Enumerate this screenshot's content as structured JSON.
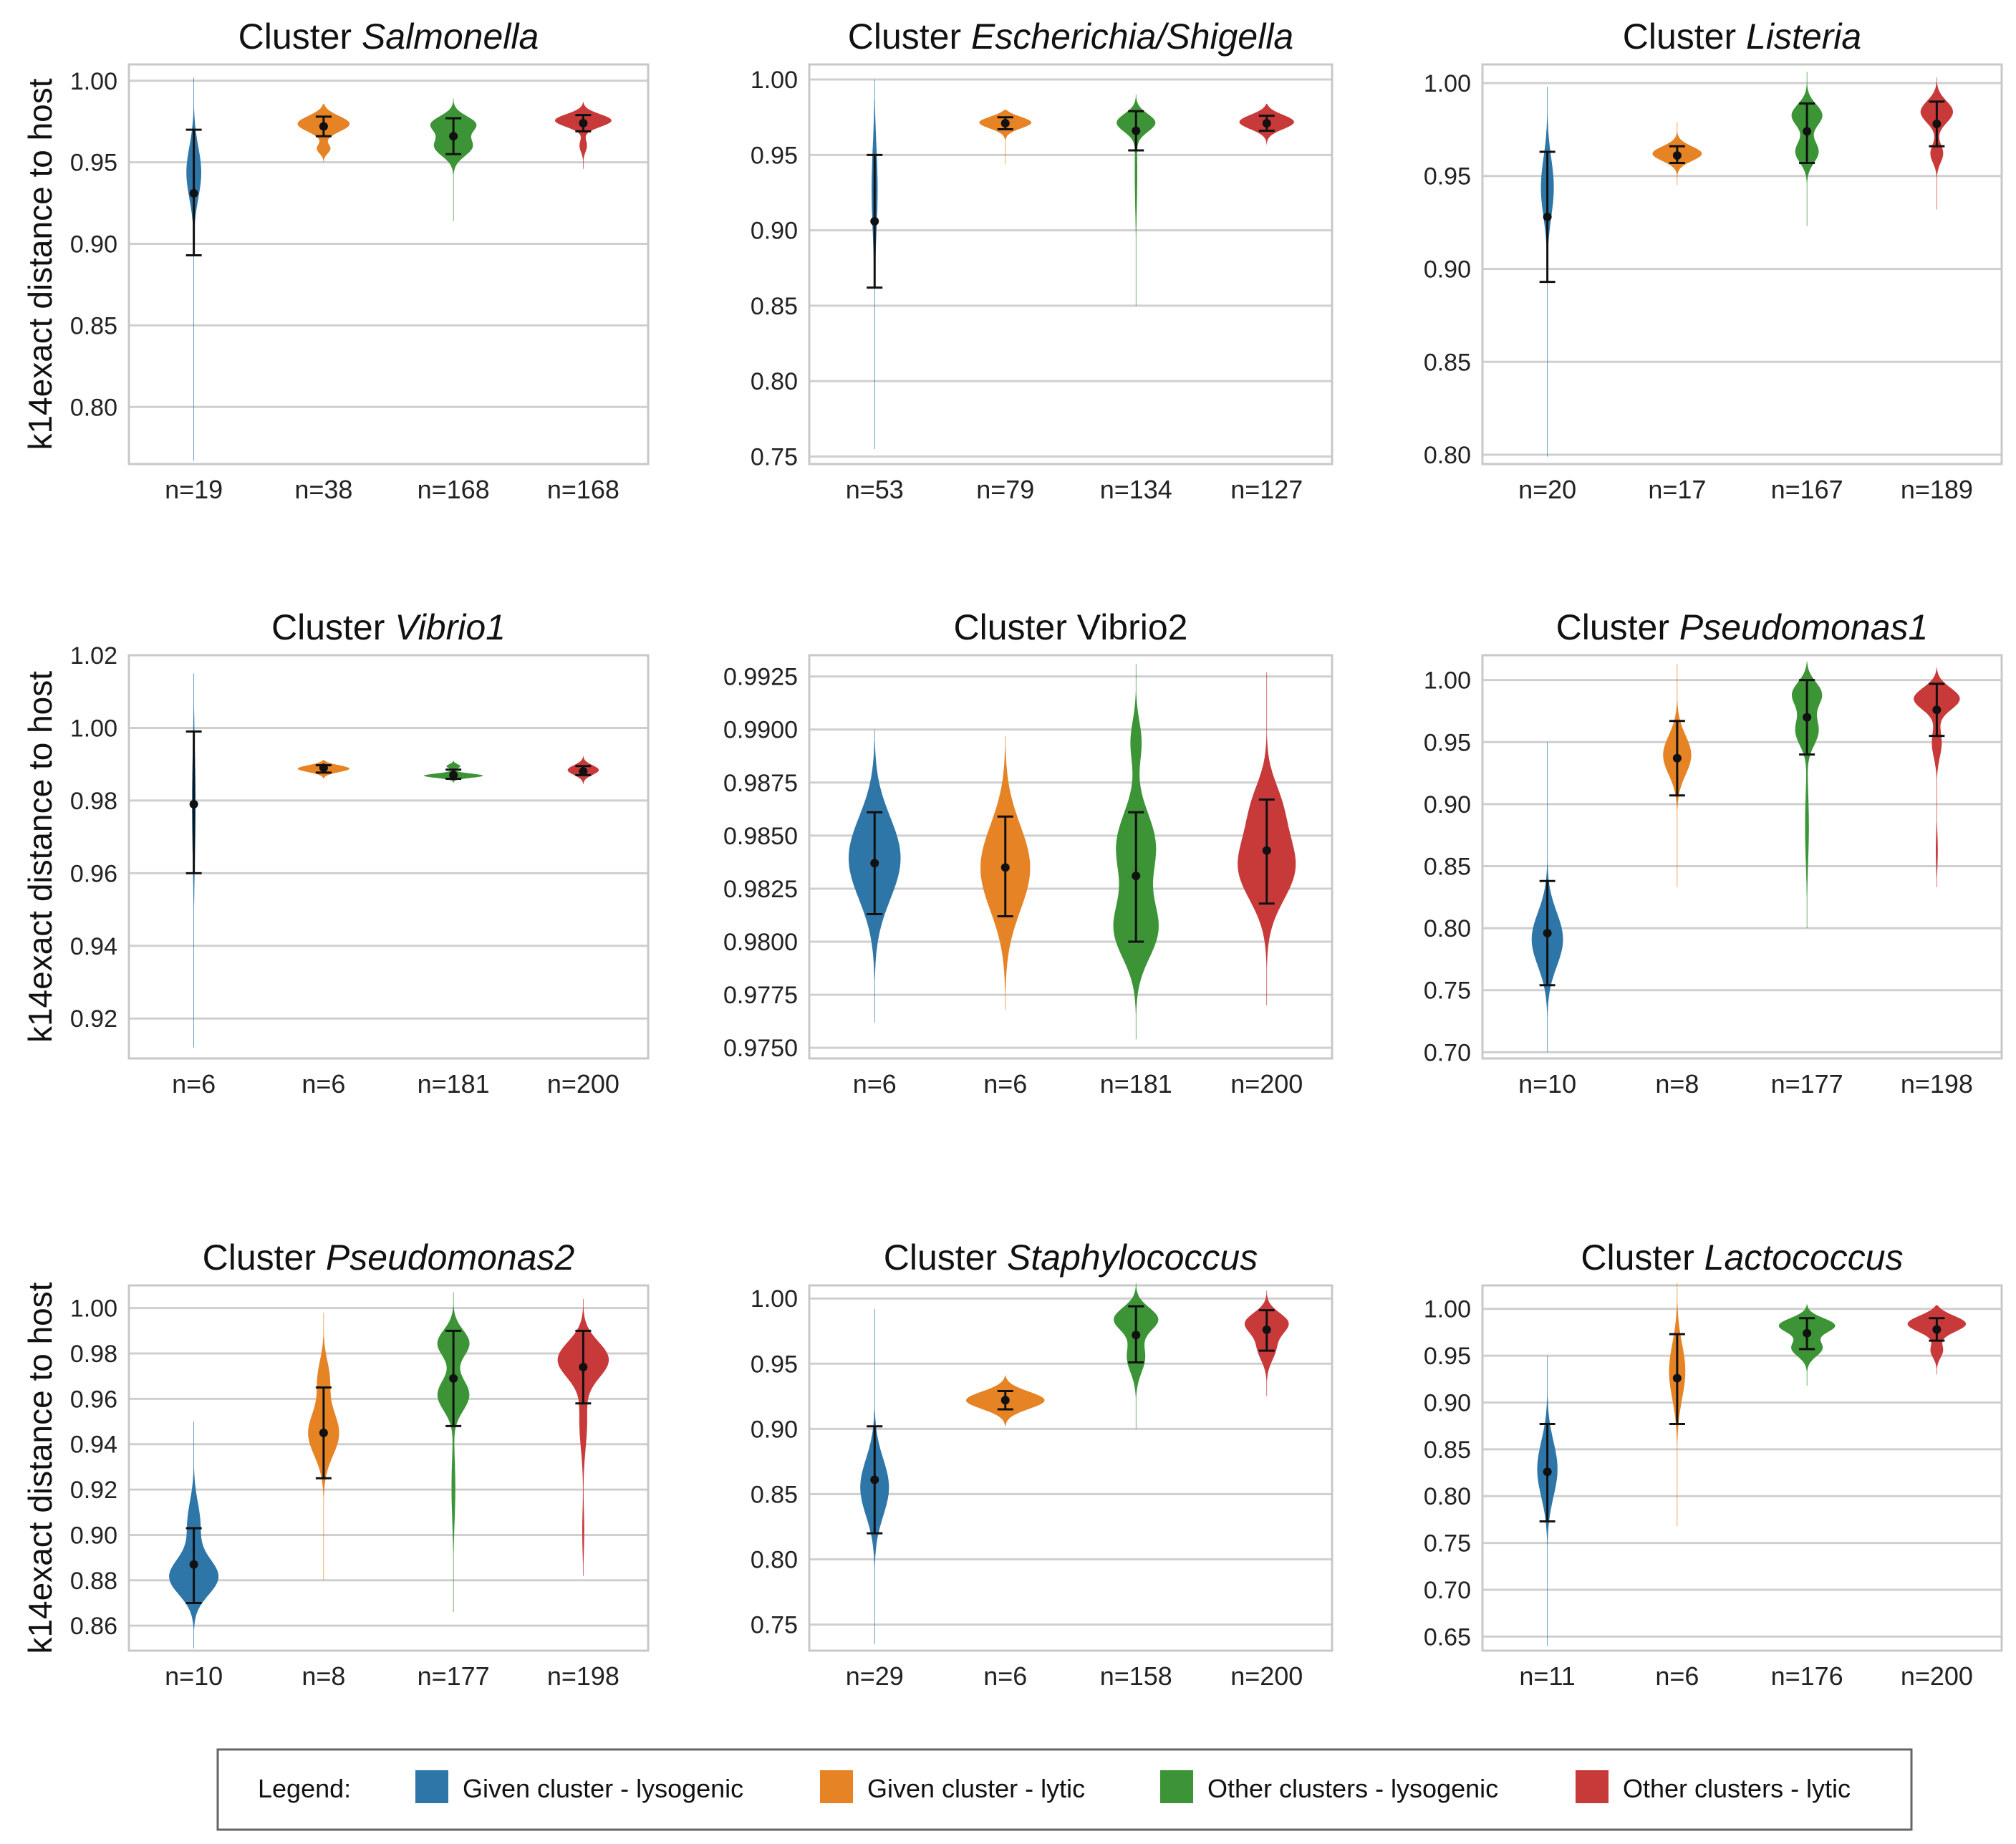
{
  "ylabel": "k14exact distance to host",
  "colors": [
    "#2e76a8",
    "#e58325",
    "#3c9437",
    "#c83a3a"
  ],
  "legend": {
    "label": "Legend:",
    "items": [
      {
        "label": "Given cluster - lysogenic",
        "color": "#2e76a8"
      },
      {
        "label": "Given cluster - lytic",
        "color": "#e58325"
      },
      {
        "label": "Other clusters - lysogenic",
        "color": "#3c9437"
      },
      {
        "label": "Other clusters - lytic",
        "color": "#c83a3a"
      }
    ]
  },
  "chart_data": [
    {
      "type": "violin",
      "title_prefix": "Cluster ",
      "title_name": "Salmonella",
      "italic": true,
      "ylim": [
        0.765,
        1.01
      ],
      "yticks": [
        0.8,
        0.85,
        0.9,
        0.95,
        1.0
      ],
      "tick_decimals": 2,
      "categories": [
        "n=19",
        "n=38",
        "n=168",
        "n=168"
      ],
      "violins": [
        {
          "mean": 0.931,
          "lo": 0.893,
          "hi": 0.97,
          "min": 0.767,
          "max": 1.002,
          "peaks": [
            [
              0.945,
              0.016,
              0.13
            ]
          ]
        },
        {
          "mean": 0.972,
          "lo": 0.966,
          "hi": 0.978,
          "min": 0.95,
          "max": 0.986,
          "peaks": [
            [
              0.974,
              0.005,
              0.42
            ],
            [
              0.958,
              0.003,
              0.12
            ]
          ]
        },
        {
          "mean": 0.966,
          "lo": 0.955,
          "hi": 0.977,
          "min": 0.914,
          "max": 0.989,
          "peaks": [
            [
              0.974,
              0.005,
              0.4
            ],
            [
              0.96,
              0.006,
              0.3
            ]
          ]
        },
        {
          "mean": 0.974,
          "lo": 0.969,
          "hi": 0.979,
          "min": 0.946,
          "max": 0.987,
          "peaks": [
            [
              0.976,
              0.004,
              0.48
            ],
            [
              0.96,
              0.004,
              0.06
            ]
          ]
        }
      ]
    },
    {
      "type": "violin",
      "title_prefix": "Cluster ",
      "title_name": "Escherichia/Shigella",
      "italic": true,
      "ylim": [
        0.745,
        1.01
      ],
      "yticks": [
        0.75,
        0.8,
        0.85,
        0.9,
        0.95,
        1.0
      ],
      "tick_decimals": 2,
      "categories": [
        "n=53",
        "n=79",
        "n=134",
        "n=127"
      ],
      "violins": [
        {
          "mean": 0.906,
          "lo": 0.862,
          "hi": 0.95,
          "min": 0.755,
          "max": 1.0,
          "peaks": [
            [
              0.93,
              0.03,
              0.05
            ]
          ]
        },
        {
          "mean": 0.971,
          "lo": 0.967,
          "hi": 0.975,
          "min": 0.944,
          "max": 0.98,
          "peaks": [
            [
              0.972,
              0.004,
              0.46
            ]
          ]
        },
        {
          "mean": 0.966,
          "lo": 0.953,
          "hi": 0.979,
          "min": 0.85,
          "max": 0.99,
          "peaks": [
            [
              0.972,
              0.006,
              0.4
            ],
            [
              0.94,
              0.025,
              0.02
            ]
          ]
        },
        {
          "mean": 0.971,
          "lo": 0.966,
          "hi": 0.976,
          "min": 0.957,
          "max": 0.984,
          "peaks": [
            [
              0.972,
              0.005,
              0.42
            ]
          ]
        }
      ]
    },
    {
      "type": "violin",
      "title_prefix": "Cluster ",
      "title_name": "Listeria",
      "italic": true,
      "ylim": [
        0.795,
        1.01
      ],
      "yticks": [
        0.8,
        0.85,
        0.9,
        0.95,
        1.0
      ],
      "tick_decimals": 2,
      "categories": [
        "n=20",
        "n=17",
        "n=167",
        "n=189"
      ],
      "violins": [
        {
          "mean": 0.928,
          "lo": 0.893,
          "hi": 0.963,
          "min": 0.799,
          "max": 0.998,
          "peaks": [
            [
              0.945,
              0.016,
              0.11
            ]
          ]
        },
        {
          "mean": 0.961,
          "lo": 0.957,
          "hi": 0.966,
          "min": 0.945,
          "max": 0.979,
          "peaks": [
            [
              0.962,
              0.004,
              0.38
            ]
          ]
        },
        {
          "mean": 0.974,
          "lo": 0.957,
          "hi": 0.989,
          "min": 0.923,
          "max": 1.006,
          "peaks": [
            [
              0.983,
              0.006,
              0.26
            ],
            [
              0.963,
              0.006,
              0.18
            ]
          ]
        },
        {
          "mean": 0.978,
          "lo": 0.966,
          "hi": 0.99,
          "min": 0.932,
          "max": 1.003,
          "peaks": [
            [
              0.985,
              0.006,
              0.28
            ],
            [
              0.962,
              0.005,
              0.1
            ]
          ]
        }
      ]
    },
    {
      "type": "violin",
      "title_prefix": "Cluster ",
      "title_name": "Vibrio1",
      "italic": true,
      "ylim": [
        0.909,
        1.02
      ],
      "yticks": [
        0.92,
        0.94,
        0.96,
        0.98,
        1.0,
        1.02
      ],
      "tick_decimals": 2,
      "categories": [
        "n=6",
        "n=6",
        "n=181",
        "n=200"
      ],
      "violins": [
        {
          "mean": 0.979,
          "lo": 0.96,
          "hi": 0.999,
          "min": 0.912,
          "max": 1.015,
          "peaks": [
            [
              0.98,
              0.015,
              0.03
            ]
          ]
        },
        {
          "mean": 0.989,
          "lo": 0.9877,
          "hi": 0.9897,
          "min": 0.986,
          "max": 0.9912,
          "peaks": [
            [
              0.9888,
              0.001,
              0.4
            ]
          ]
        },
        {
          "mean": 0.987,
          "lo": 0.986,
          "hi": 0.9885,
          "min": 0.9848,
          "max": 0.991,
          "peaks": [
            [
              0.9868,
              0.0006,
              0.48
            ],
            [
              0.9895,
              0.0006,
              0.12
            ]
          ]
        },
        {
          "mean": 0.988,
          "lo": 0.987,
          "hi": 0.9895,
          "min": 0.9845,
          "max": 0.9922,
          "peaks": [
            [
              0.9884,
              0.0014,
              0.24
            ]
          ]
        }
      ]
    },
    {
      "type": "violin",
      "title_prefix": "Cluster ",
      "title_name": "Vibrio2",
      "italic": false,
      "ylim": [
        0.9745,
        0.9935
      ],
      "yticks": [
        0.975,
        0.9775,
        0.98,
        0.9825,
        0.985,
        0.9875,
        0.99,
        0.9925
      ],
      "tick_decimals": 4,
      "categories": [
        "n=6",
        "n=6",
        "n=181",
        "n=200"
      ],
      "violins": [
        {
          "mean": 0.9837,
          "lo": 0.9813,
          "hi": 0.9861,
          "min": 0.9762,
          "max": 0.99,
          "peaks": [
            [
              0.984,
              0.002,
              0.4
            ]
          ]
        },
        {
          "mean": 0.9835,
          "lo": 0.9812,
          "hi": 0.9859,
          "min": 0.9768,
          "max": 0.9897,
          "peaks": [
            [
              0.9835,
              0.0021,
              0.38
            ]
          ]
        },
        {
          "mean": 0.9831,
          "lo": 0.98,
          "hi": 0.9861,
          "min": 0.9754,
          "max": 0.9931,
          "peaks": [
            [
              0.9805,
              0.0014,
              0.36
            ],
            [
              0.9845,
              0.0016,
              0.3
            ],
            [
              0.9895,
              0.001,
              0.1
            ]
          ]
        },
        {
          "mean": 0.9843,
          "lo": 0.9818,
          "hi": 0.9867,
          "min": 0.977,
          "max": 0.9927,
          "peaks": [
            [
              0.9835,
              0.0016,
              0.44
            ],
            [
              0.9865,
              0.0012,
              0.18
            ]
          ]
        }
      ]
    },
    {
      "type": "violin",
      "title_prefix": "Cluster ",
      "title_name": "Pseudomonas1",
      "italic": true,
      "ylim": [
        0.695,
        1.02
      ],
      "yticks": [
        0.7,
        0.75,
        0.8,
        0.85,
        0.9,
        0.95,
        1.0
      ],
      "tick_decimals": 2,
      "categories": [
        "n=10",
        "n=8",
        "n=177",
        "n=198"
      ],
      "violins": [
        {
          "mean": 0.796,
          "lo": 0.754,
          "hi": 0.838,
          "min": 0.7,
          "max": 0.95,
          "peaks": [
            [
              0.79,
              0.022,
              0.25
            ]
          ]
        },
        {
          "mean": 0.937,
          "lo": 0.907,
          "hi": 0.967,
          "min": 0.833,
          "max": 1.013,
          "peaks": [
            [
              0.94,
              0.016,
              0.22
            ]
          ]
        },
        {
          "mean": 0.97,
          "lo": 0.94,
          "hi": 1.0,
          "min": 0.8,
          "max": 1.015,
          "peaks": [
            [
              0.99,
              0.01,
              0.32
            ],
            [
              0.96,
              0.012,
              0.2
            ],
            [
              0.88,
              0.03,
              0.03
            ]
          ]
        },
        {
          "mean": 0.976,
          "lo": 0.955,
          "hi": 0.997,
          "min": 0.833,
          "max": 1.01,
          "peaks": [
            [
              0.986,
              0.009,
              0.48
            ],
            [
              0.95,
              0.012,
              0.08
            ],
            [
              0.86,
              0.015,
              0.02
            ]
          ]
        }
      ]
    },
    {
      "type": "violin",
      "title_prefix": "Cluster ",
      "title_name": "Pseudomonas2",
      "italic": true,
      "ylim": [
        0.849,
        1.01
      ],
      "yticks": [
        0.86,
        0.88,
        0.9,
        0.92,
        0.94,
        0.96,
        0.98,
        1.0
      ],
      "tick_decimals": 2,
      "categories": [
        "n=10",
        "n=8",
        "n=177",
        "n=198"
      ],
      "violins": [
        {
          "mean": 0.887,
          "lo": 0.87,
          "hi": 0.903,
          "min": 0.85,
          "max": 0.95,
          "peaks": [
            [
              0.881,
              0.008,
              0.4
            ],
            [
              0.905,
              0.01,
              0.1
            ]
          ]
        },
        {
          "mean": 0.945,
          "lo": 0.925,
          "hi": 0.965,
          "min": 0.88,
          "max": 0.998,
          "peaks": [
            [
              0.945,
              0.01,
              0.24
            ],
            [
              0.97,
              0.008,
              0.1
            ]
          ]
        },
        {
          "mean": 0.969,
          "lo": 0.948,
          "hi": 0.99,
          "min": 0.866,
          "max": 1.007,
          "peaks": [
            [
              0.985,
              0.006,
              0.32
            ],
            [
              0.962,
              0.007,
              0.26
            ],
            [
              0.92,
              0.015,
              0.03
            ]
          ]
        },
        {
          "mean": 0.974,
          "lo": 0.958,
          "hi": 0.99,
          "min": 0.882,
          "max": 1.004,
          "peaks": [
            [
              0.978,
              0.008,
              0.46
            ],
            [
              0.95,
              0.012,
              0.06
            ],
            [
              0.9,
              0.01,
              0.02
            ]
          ]
        }
      ]
    },
    {
      "type": "violin",
      "title_prefix": "Cluster ",
      "title_name": "Staphylococcus",
      "italic": true,
      "ylim": [
        0.73,
        1.01
      ],
      "yticks": [
        0.75,
        0.8,
        0.85,
        0.9,
        0.95,
        1.0
      ],
      "tick_decimals": 2,
      "categories": [
        "n=29",
        "n=6",
        "n=158",
        "n=200"
      ],
      "violins": [
        {
          "mean": 0.861,
          "lo": 0.82,
          "hi": 0.902,
          "min": 0.735,
          "max": 0.992,
          "peaks": [
            [
              0.855,
              0.022,
              0.22
            ]
          ]
        },
        {
          "mean": 0.922,
          "lo": 0.915,
          "hi": 0.929,
          "min": 0.902,
          "max": 0.941,
          "peaks": [
            [
              0.922,
              0.007,
              0.6
            ]
          ]
        },
        {
          "mean": 0.972,
          "lo": 0.951,
          "hi": 0.994,
          "min": 0.9,
          "max": 1.012,
          "peaks": [
            [
              0.985,
              0.009,
              0.38
            ],
            [
              0.955,
              0.012,
              0.14
            ]
          ]
        },
        {
          "mean": 0.976,
          "lo": 0.96,
          "hi": 0.991,
          "min": 0.925,
          "max": 1.006,
          "peaks": [
            [
              0.982,
              0.008,
              0.34
            ],
            [
              0.962,
              0.01,
              0.14
            ]
          ]
        }
      ]
    },
    {
      "type": "violin",
      "title_prefix": "Cluster ",
      "title_name": "Lactococcus",
      "italic": true,
      "ylim": [
        0.635,
        1.025
      ],
      "yticks": [
        0.65,
        0.7,
        0.75,
        0.8,
        0.85,
        0.9,
        0.95,
        1.0
      ],
      "tick_decimals": 2,
      "categories": [
        "n=11",
        "n=6",
        "n=176",
        "n=200"
      ],
      "violins": [
        {
          "mean": 0.826,
          "lo": 0.773,
          "hi": 0.877,
          "min": 0.64,
          "max": 0.95,
          "peaks": [
            [
              0.83,
              0.03,
              0.16
            ]
          ]
        },
        {
          "mean": 0.926,
          "lo": 0.877,
          "hi": 0.973,
          "min": 0.768,
          "max": 1.028,
          "peaks": [
            [
              0.935,
              0.03,
              0.13
            ]
          ]
        },
        {
          "mean": 0.974,
          "lo": 0.957,
          "hi": 0.99,
          "min": 0.918,
          "max": 1.005,
          "peaks": [
            [
              0.983,
              0.008,
              0.48
            ],
            [
              0.958,
              0.009,
              0.24
            ]
          ]
        },
        {
          "mean": 0.978,
          "lo": 0.966,
          "hi": 0.99,
          "min": 0.93,
          "max": 1.004,
          "peaks": [
            [
              0.985,
              0.009,
              0.5
            ],
            [
              0.955,
              0.008,
              0.1
            ]
          ]
        }
      ]
    }
  ]
}
